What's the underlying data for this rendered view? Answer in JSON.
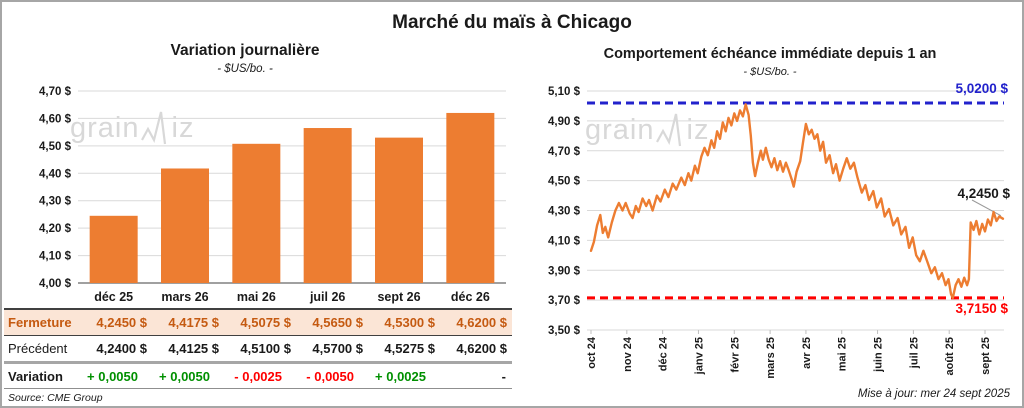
{
  "title": "Marché du maïs à Chicago",
  "source_note": "Source: CME Group",
  "updated_note": "Mise à jour: mer 24 sept 2025",
  "watermark": {
    "part1": "grain",
    "part2": "iz"
  },
  "colors": {
    "orange": "#ED7D31",
    "blue": "#2222CC",
    "red": "#FF0000",
    "green": "#009000",
    "fermeture_text": "#C55A11",
    "fermeture_bg": "#FBE5D6",
    "grid": "#D9D9D9",
    "axis": "#808080",
    "watermark": "#D8D8D8"
  },
  "chart_data": [
    {
      "type": "bar",
      "title": "Variation journalière",
      "subtitle": "- $US/bo. -",
      "categories": [
        "déc 25",
        "mars 26",
        "mai 26",
        "juil 26",
        "sept 26",
        "déc 26"
      ],
      "values": [
        4.245,
        4.4175,
        4.5075,
        4.565,
        4.53,
        4.62
      ],
      "ylim": [
        4.0,
        4.7
      ],
      "ytick_step": 0.1,
      "ytick_format": "0,00 $",
      "bar_color": "#ED7D31",
      "grid": true,
      "legend": "none"
    },
    {
      "type": "line",
      "title": "Comportement échéance immédiate depuis 1 an",
      "subtitle": "- $US/bo. -",
      "x_tick_labels": [
        "oct 24",
        "nov 24",
        "déc 24",
        "janv 25",
        "févr 25",
        "mars 25",
        "avr 25",
        "mai 25",
        "juin 25",
        "juil 25",
        "août 25",
        "sept 25"
      ],
      "ylim": [
        3.5,
        5.1
      ],
      "ytick_step": 0.2,
      "ytick_format": "0,00 $",
      "line_color": "#ED7D31",
      "grid": true,
      "legend": "none",
      "ref_lines": [
        {
          "value": 5.02,
          "label": "5,0200 $",
          "color": "#2222CC",
          "style": "dashed",
          "position": "top-right"
        },
        {
          "value": 3.715,
          "label": "3,7150 $",
          "color": "#FF0000",
          "style": "dashed",
          "position": "bottom-right"
        }
      ],
      "last_point": {
        "value": 4.245,
        "label": "4,2450 $"
      },
      "points": [
        [
          0,
          4.03
        ],
        [
          0.08,
          4.09
        ],
        [
          0.17,
          4.2
        ],
        [
          0.26,
          4.27
        ],
        [
          0.33,
          4.15
        ],
        [
          0.4,
          4.19
        ],
        [
          0.48,
          4.12
        ],
        [
          0.58,
          4.22
        ],
        [
          0.68,
          4.3
        ],
        [
          0.78,
          4.35
        ],
        [
          0.88,
          4.3
        ],
        [
          0.97,
          4.35
        ],
        [
          1.08,
          4.28
        ],
        [
          1.16,
          4.25
        ],
        [
          1.25,
          4.33
        ],
        [
          1.33,
          4.29
        ],
        [
          1.44,
          4.38
        ],
        [
          1.54,
          4.33
        ],
        [
          1.62,
          4.37
        ],
        [
          1.72,
          4.3
        ],
        [
          1.84,
          4.4
        ],
        [
          1.94,
          4.36
        ],
        [
          2.06,
          4.44
        ],
        [
          2.16,
          4.39
        ],
        [
          2.28,
          4.48
        ],
        [
          2.38,
          4.44
        ],
        [
          2.52,
          4.52
        ],
        [
          2.62,
          4.47
        ],
        [
          2.72,
          4.55
        ],
        [
          2.8,
          4.5
        ],
        [
          2.9,
          4.6
        ],
        [
          2.98,
          4.55
        ],
        [
          3.08,
          4.66
        ],
        [
          3.17,
          4.72
        ],
        [
          3.26,
          4.67
        ],
        [
          3.36,
          4.77
        ],
        [
          3.44,
          4.72
        ],
        [
          3.52,
          4.83
        ],
        [
          3.6,
          4.78
        ],
        [
          3.68,
          4.89
        ],
        [
          3.76,
          4.83
        ],
        [
          3.84,
          4.92
        ],
        [
          3.92,
          4.87
        ],
        [
          4.0,
          4.95
        ],
        [
          4.08,
          4.9
        ],
        [
          4.16,
          4.97
        ],
        [
          4.24,
          4.93
        ],
        [
          4.32,
          5.01
        ],
        [
          4.4,
          4.94
        ],
        [
          4.46,
          4.8
        ],
        [
          4.52,
          4.62
        ],
        [
          4.58,
          4.53
        ],
        [
          4.66,
          4.62
        ],
        [
          4.74,
          4.7
        ],
        [
          4.8,
          4.64
        ],
        [
          4.88,
          4.72
        ],
        [
          4.96,
          4.64
        ],
        [
          5.04,
          4.59
        ],
        [
          5.12,
          4.65
        ],
        [
          5.2,
          4.57
        ],
        [
          5.28,
          4.63
        ],
        [
          5.36,
          4.56
        ],
        [
          5.44,
          4.62
        ],
        [
          5.52,
          4.57
        ],
        [
          5.6,
          4.51
        ],
        [
          5.66,
          4.46
        ],
        [
          5.74,
          4.56
        ],
        [
          5.84,
          4.63
        ],
        [
          5.92,
          4.76
        ],
        [
          6.0,
          4.88
        ],
        [
          6.08,
          4.81
        ],
        [
          6.16,
          4.84
        ],
        [
          6.24,
          4.78
        ],
        [
          6.32,
          4.81
        ],
        [
          6.4,
          4.7
        ],
        [
          6.48,
          4.76
        ],
        [
          6.56,
          4.62
        ],
        [
          6.66,
          4.67
        ],
        [
          6.76,
          4.55
        ],
        [
          6.84,
          4.61
        ],
        [
          6.94,
          4.5
        ],
        [
          7.04,
          4.58
        ],
        [
          7.14,
          4.65
        ],
        [
          7.24,
          4.58
        ],
        [
          7.34,
          4.62
        ],
        [
          7.44,
          4.52
        ],
        [
          7.56,
          4.42
        ],
        [
          7.66,
          4.47
        ],
        [
          7.76,
          4.37
        ],
        [
          7.88,
          4.43
        ],
        [
          7.98,
          4.32
        ],
        [
          8.1,
          4.38
        ],
        [
          8.2,
          4.26
        ],
        [
          8.32,
          4.31
        ],
        [
          8.44,
          4.2
        ],
        [
          8.56,
          4.25
        ],
        [
          8.66,
          4.14
        ],
        [
          8.78,
          4.19
        ],
        [
          8.88,
          4.05
        ],
        [
          8.98,
          4.12
        ],
        [
          9.08,
          4.0
        ],
        [
          9.18,
          3.96
        ],
        [
          9.28,
          4.03
        ],
        [
          9.4,
          3.95
        ],
        [
          9.5,
          3.88
        ],
        [
          9.6,
          3.92
        ],
        [
          9.7,
          3.84
        ],
        [
          9.8,
          3.88
        ],
        [
          9.9,
          3.8
        ],
        [
          9.98,
          3.84
        ],
        [
          10.05,
          3.74
        ],
        [
          10.1,
          3.715
        ],
        [
          10.18,
          3.8
        ],
        [
          10.26,
          3.84
        ],
        [
          10.34,
          3.79
        ],
        [
          10.42,
          3.85
        ],
        [
          10.5,
          3.8
        ],
        [
          10.55,
          3.84
        ],
        [
          10.6,
          4.22
        ],
        [
          10.68,
          4.17
        ],
        [
          10.76,
          4.23
        ],
        [
          10.84,
          4.14
        ],
        [
          10.92,
          4.21
        ],
        [
          11.0,
          4.16
        ],
        [
          11.08,
          4.24
        ],
        [
          11.16,
          4.2
        ],
        [
          11.24,
          4.29
        ],
        [
          11.32,
          4.23
        ],
        [
          11.4,
          4.26
        ],
        [
          11.5,
          4.245
        ]
      ]
    }
  ],
  "table": {
    "columns": [
      "déc 25",
      "mars 26",
      "mai 26",
      "juil 26",
      "sept 26",
      "déc 26"
    ],
    "rows": [
      {
        "label": "Fermeture",
        "values": [
          "4,2450 $",
          "4,4175 $",
          "4,5075 $",
          "4,5650 $",
          "4,5300 $",
          "4,6200 $"
        ]
      },
      {
        "label": "Précédent",
        "values": [
          "4,2400 $",
          "4,4125 $",
          "4,5100 $",
          "4,5700 $",
          "4,5275 $",
          "4,6200 $"
        ]
      },
      {
        "label": "Variation",
        "values": [
          "+ 0,0050",
          "+ 0,0050",
          "- 0,0025",
          "- 0,0050",
          "+ 0,0025",
          "-"
        ],
        "trend": [
          "up",
          "up",
          "down",
          "down",
          "up",
          "none"
        ]
      }
    ]
  }
}
